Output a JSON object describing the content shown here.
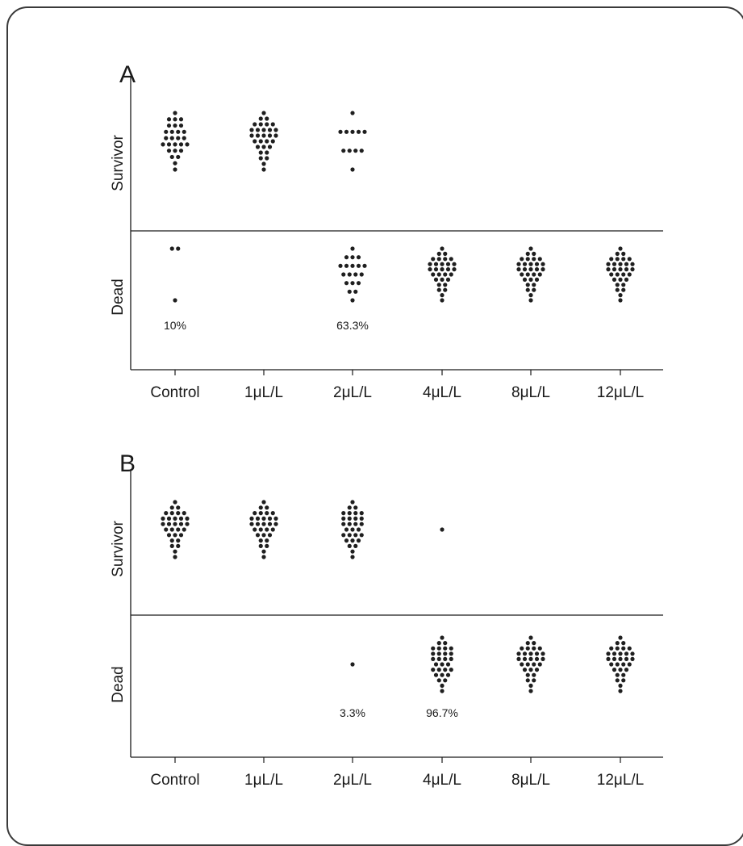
{
  "colors": {
    "dot": "#1f1f1f",
    "axis": "#1a1a1a",
    "frame": "#3a3a3a"
  },
  "chart_data": [
    {
      "type": "scatter",
      "panel": "A",
      "categories": [
        "Control",
        "1μL/L",
        "2μL/L",
        "4μL/L",
        "8μL/L",
        "12μL/L"
      ],
      "y_categories": [
        "Dead",
        "Survivor"
      ],
      "counts": [
        {
          "category": "Control",
          "survivor": 27,
          "dead": 3
        },
        {
          "category": "1μL/L",
          "survivor": 30,
          "dead": 0
        },
        {
          "category": "2μL/L",
          "survivor": 11,
          "dead": 19
        },
        {
          "category": "4μL/L",
          "survivor": 0,
          "dead": 30
        },
        {
          "category": "8μL/L",
          "survivor": 0,
          "dead": 30
        },
        {
          "category": "12μL/L",
          "survivor": 0,
          "dead": 30
        }
      ],
      "annotations": [
        {
          "category": "Control",
          "text": "10%"
        },
        {
          "category": "2μL/L",
          "text": "63.3%"
        }
      ]
    },
    {
      "type": "scatter",
      "panel": "B",
      "categories": [
        "Control",
        "1μL/L",
        "2μL/L",
        "4μL/L",
        "8μL/L",
        "12μL/L"
      ],
      "y_categories": [
        "Dead",
        "Survivor"
      ],
      "counts": [
        {
          "category": "Control",
          "survivor": 30,
          "dead": 0
        },
        {
          "category": "1μL/L",
          "survivor": 30,
          "dead": 0
        },
        {
          "category": "2μL/L",
          "survivor": 29,
          "dead": 1
        },
        {
          "category": "4μL/L",
          "survivor": 1,
          "dead": 29
        },
        {
          "category": "8μL/L",
          "survivor": 0,
          "dead": 30
        },
        {
          "category": "12μL/L",
          "survivor": 0,
          "dead": 30
        }
      ],
      "annotations": [
        {
          "category": "2μL/L",
          "text": "3.3%"
        },
        {
          "category": "4μL/L",
          "text": "96.7%"
        }
      ]
    }
  ]
}
